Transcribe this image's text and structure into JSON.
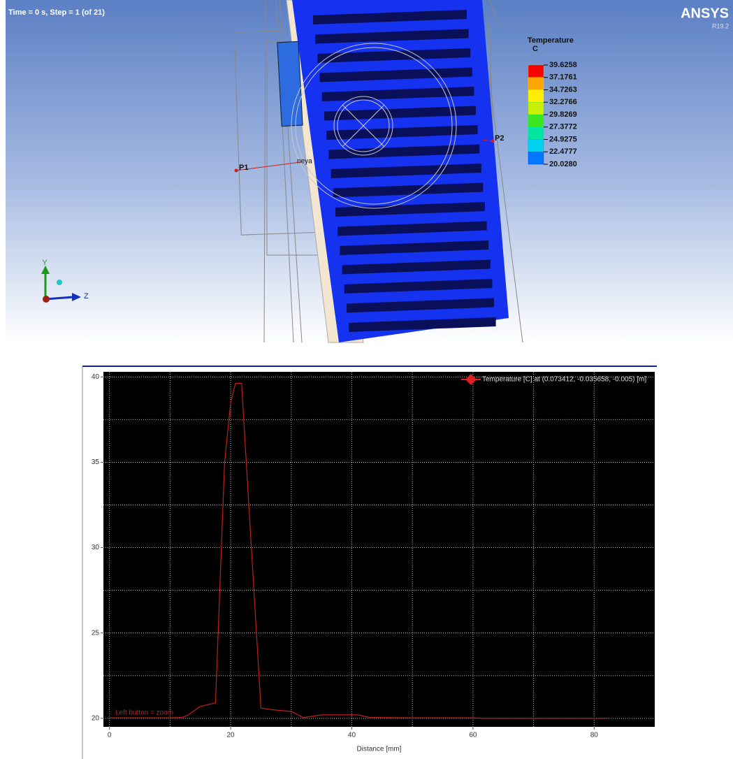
{
  "viewport": {
    "status": "Time = 0 s, Step = 1 (of 21)",
    "brand": "ANSYS",
    "version": "R19.2",
    "legend": {
      "title": "Temperature",
      "unit": "C",
      "levels": [
        "39.6258",
        "37.1761",
        "34.7263",
        "32.2766",
        "29.8269",
        "27.3772",
        "24.9275",
        "22.4777",
        "20.0280"
      ],
      "colors": [
        "#ff0000",
        "#ffa500",
        "#ffee00",
        "#c8f000",
        "#3ce61e",
        "#00e6a0",
        "#00d2f0",
        "#0078ff",
        "#0000ff"
      ]
    },
    "points": [
      "P1",
      "P2"
    ],
    "label": "neya",
    "axes": [
      "Y",
      "Z"
    ]
  },
  "chart_data": {
    "type": "line",
    "xlabel": "Distance [mm]",
    "annotation": "Left button = zoom",
    "x": [
      0,
      5,
      10,
      12,
      13,
      15,
      17.5,
      19,
      20,
      20.8,
      21.8,
      25,
      27,
      30,
      32,
      35,
      41,
      43,
      50,
      60,
      62,
      70,
      82
    ],
    "series": [
      {
        "name": "Temperature [C] at (0.073412, -0.035658, -0.005) [m]",
        "color": "#c0201c",
        "values": [
          20.03,
          20.03,
          20.03,
          20.05,
          20.2,
          20.7,
          20.9,
          35,
          38.5,
          39.63,
          39.63,
          20.6,
          20.5,
          20.4,
          20.05,
          20.2,
          20.2,
          20.05,
          20.03,
          20.03,
          20.0,
          20.0,
          20.0
        ]
      }
    ],
    "xlim": [
      -1,
      90
    ],
    "ylim": [
      19.5,
      40.3
    ],
    "xticks": [
      0,
      20,
      40,
      60,
      80
    ],
    "yticks": [
      20,
      25,
      30,
      35,
      40
    ],
    "grid": true
  }
}
